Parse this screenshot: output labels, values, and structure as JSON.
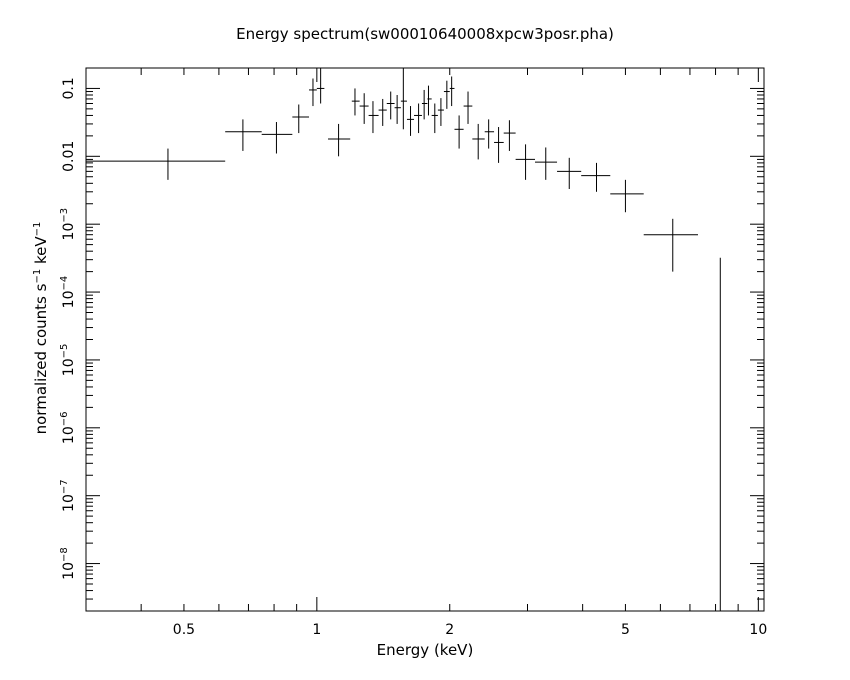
{
  "chart_data": {
    "type": "scatter",
    "title": "Energy spectrum(sw00010640008xpcw3posr.pha)",
    "xlabel": "Energy (keV)",
    "ylabel_main": "normalized counts s",
    "ylabel_sup1": "−1",
    "ylabel_mid": " keV",
    "ylabel_sup2": "−1",
    "xscale": "log",
    "yscale": "log",
    "xlim": [
      0.3,
      10.3
    ],
    "ylim": [
      2e-09,
      0.2
    ],
    "x_ticks": [
      {
        "value": 0.5,
        "label": "0.5"
      },
      {
        "value": 1,
        "label": "1"
      },
      {
        "value": 2,
        "label": "2"
      },
      {
        "value": 5,
        "label": "5"
      },
      {
        "value": 10,
        "label": "10"
      }
    ],
    "y_ticks": [
      {
        "value": 0.1,
        "base": "0.1",
        "sup": ""
      },
      {
        "value": 0.01,
        "base": "0.01",
        "sup": ""
      },
      {
        "value": 0.001,
        "base": "10",
        "sup": "−3"
      },
      {
        "value": 0.0001,
        "base": "10",
        "sup": "−4"
      },
      {
        "value": 1e-05,
        "base": "10",
        "sup": "−5"
      },
      {
        "value": 1e-06,
        "base": "10",
        "sup": "−6"
      },
      {
        "value": 1e-07,
        "base": "10",
        "sup": "−7"
      },
      {
        "value": 1e-08,
        "base": "10",
        "sup": "−8"
      }
    ],
    "grid": false,
    "series": [
      {
        "points": [
          {
            "x": 0.46,
            "xlo": 0.3,
            "xhi": 0.62,
            "y": 0.0085,
            "ylo": 0.0045,
            "yhi": 0.013
          },
          {
            "x": 0.68,
            "xlo": 0.62,
            "xhi": 0.75,
            "y": 0.023,
            "ylo": 0.012,
            "yhi": 0.035
          },
          {
            "x": 0.81,
            "xlo": 0.75,
            "xhi": 0.88,
            "y": 0.021,
            "ylo": 0.011,
            "yhi": 0.032
          },
          {
            "x": 0.91,
            "xlo": 0.88,
            "xhi": 0.96,
            "y": 0.038,
            "ylo": 0.022,
            "yhi": 0.058
          },
          {
            "x": 0.98,
            "xlo": 0.96,
            "xhi": 1.0,
            "y": 0.095,
            "ylo": 0.055,
            "yhi": 0.14
          },
          {
            "x": 1.02,
            "xlo": 1.0,
            "xhi": 1.04,
            "y": 0.1,
            "ylo": 0.06,
            "yhi": 0.2
          },
          {
            "x": 1.12,
            "xlo": 1.06,
            "xhi": 1.19,
            "y": 0.018,
            "ylo": 0.01,
            "yhi": 0.03
          },
          {
            "x": 1.22,
            "xlo": 1.2,
            "xhi": 1.25,
            "y": 0.065,
            "ylo": 0.04,
            "yhi": 0.1
          },
          {
            "x": 1.28,
            "xlo": 1.25,
            "xhi": 1.31,
            "y": 0.055,
            "ylo": 0.03,
            "yhi": 0.085
          },
          {
            "x": 1.34,
            "xlo": 1.31,
            "xhi": 1.38,
            "y": 0.04,
            "ylo": 0.022,
            "yhi": 0.065
          },
          {
            "x": 1.41,
            "xlo": 1.38,
            "xhi": 1.44,
            "y": 0.048,
            "ylo": 0.028,
            "yhi": 0.07
          },
          {
            "x": 1.47,
            "xlo": 1.44,
            "xhi": 1.5,
            "y": 0.06,
            "ylo": 0.035,
            "yhi": 0.09
          },
          {
            "x": 1.52,
            "xlo": 1.5,
            "xhi": 1.55,
            "y": 0.052,
            "ylo": 0.03,
            "yhi": 0.08
          },
          {
            "x": 1.57,
            "xlo": 1.55,
            "xhi": 1.6,
            "y": 0.065,
            "ylo": 0.025,
            "yhi": 0.2
          },
          {
            "x": 1.63,
            "xlo": 1.6,
            "xhi": 1.66,
            "y": 0.035,
            "ylo": 0.02,
            "yhi": 0.055
          },
          {
            "x": 1.7,
            "xlo": 1.66,
            "xhi": 1.73,
            "y": 0.04,
            "ylo": 0.022,
            "yhi": 0.06
          },
          {
            "x": 1.75,
            "xlo": 1.73,
            "xhi": 1.78,
            "y": 0.06,
            "ylo": 0.035,
            "yhi": 0.095
          },
          {
            "x": 1.79,
            "xlo": 1.78,
            "xhi": 1.82,
            "y": 0.07,
            "ylo": 0.04,
            "yhi": 0.11
          },
          {
            "x": 1.85,
            "xlo": 1.82,
            "xhi": 1.88,
            "y": 0.04,
            "ylo": 0.022,
            "yhi": 0.06
          },
          {
            "x": 1.91,
            "xlo": 1.88,
            "xhi": 1.94,
            "y": 0.048,
            "ylo": 0.028,
            "yhi": 0.072
          },
          {
            "x": 1.97,
            "xlo": 1.94,
            "xhi": 2.0,
            "y": 0.09,
            "ylo": 0.05,
            "yhi": 0.13
          },
          {
            "x": 2.02,
            "xlo": 2.0,
            "xhi": 2.05,
            "y": 0.1,
            "ylo": 0.055,
            "yhi": 0.15
          },
          {
            "x": 2.1,
            "xlo": 2.05,
            "xhi": 2.15,
            "y": 0.025,
            "ylo": 0.013,
            "yhi": 0.04
          },
          {
            "x": 2.2,
            "xlo": 2.15,
            "xhi": 2.25,
            "y": 0.055,
            "ylo": 0.03,
            "yhi": 0.09
          },
          {
            "x": 2.32,
            "xlo": 2.25,
            "xhi": 2.4,
            "y": 0.018,
            "ylo": 0.009,
            "yhi": 0.03
          },
          {
            "x": 2.45,
            "xlo": 2.4,
            "xhi": 2.52,
            "y": 0.023,
            "ylo": 0.013,
            "yhi": 0.035
          },
          {
            "x": 2.58,
            "xlo": 2.52,
            "xhi": 2.65,
            "y": 0.016,
            "ylo": 0.008,
            "yhi": 0.027
          },
          {
            "x": 2.73,
            "xlo": 2.65,
            "xhi": 2.82,
            "y": 0.022,
            "ylo": 0.012,
            "yhi": 0.034
          },
          {
            "x": 2.97,
            "xlo": 2.82,
            "xhi": 3.12,
            "y": 0.009,
            "ylo": 0.0045,
            "yhi": 0.015
          },
          {
            "x": 3.3,
            "xlo": 3.12,
            "xhi": 3.5,
            "y": 0.0082,
            "ylo": 0.0045,
            "yhi": 0.0135
          },
          {
            "x": 3.73,
            "xlo": 3.5,
            "xhi": 3.97,
            "y": 0.006,
            "ylo": 0.0033,
            "yhi": 0.0095
          },
          {
            "x": 4.3,
            "xlo": 3.97,
            "xhi": 4.62,
            "y": 0.0052,
            "ylo": 0.003,
            "yhi": 0.008
          },
          {
            "x": 5.0,
            "xlo": 4.62,
            "xhi": 5.5,
            "y": 0.0028,
            "ylo": 0.0015,
            "yhi": 0.0045
          },
          {
            "x": 6.4,
            "xlo": 5.5,
            "xhi": 7.3,
            "y": 0.0007,
            "ylo": 0.0002,
            "yhi": 0.0012
          },
          {
            "x": 8.2,
            "xlo": 8.2,
            "xhi": 8.2,
            "y": null,
            "ylo": 2e-09,
            "yhi": 0.00032
          }
        ]
      }
    ]
  }
}
